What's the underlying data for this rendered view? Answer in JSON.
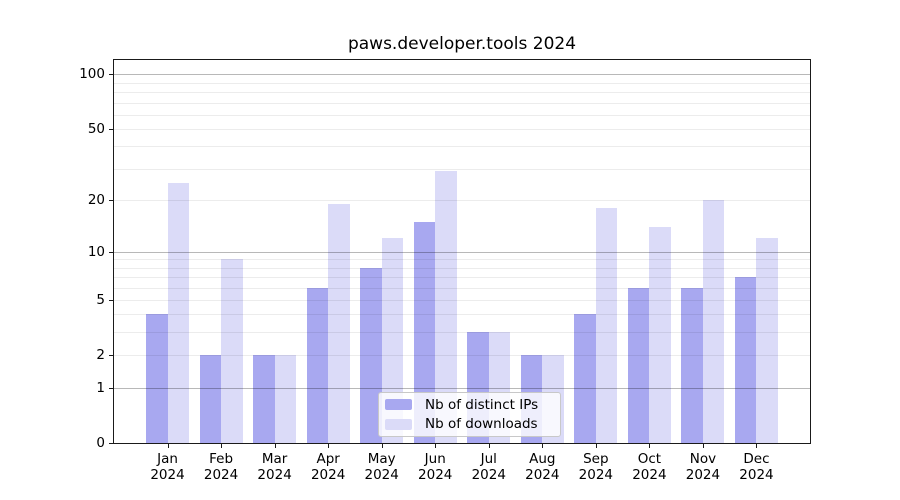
{
  "title": "paws.developer.tools 2024",
  "chart_data": {
    "type": "bar",
    "title": "paws.developer.tools 2024",
    "categories": [
      "Jan",
      "Feb",
      "Mar",
      "Apr",
      "May",
      "Jun",
      "Jul",
      "Aug",
      "Sep",
      "Oct",
      "Nov",
      "Dec"
    ],
    "category_year": "2024",
    "series": [
      {
        "name": "Nb of distinct IPs",
        "color": "#a8a8f0",
        "values": [
          4,
          2,
          2,
          6,
          8,
          15,
          3,
          2,
          4,
          6,
          6,
          7
        ]
      },
      {
        "name": "Nb of downloads",
        "color": "#dbdbf8",
        "values": [
          25,
          9,
          2,
          19,
          12,
          29,
          3,
          2,
          18,
          14,
          20,
          12
        ]
      }
    ],
    "xlabel": "",
    "ylabel": "",
    "yscale": "log1p",
    "ylim": [
      0,
      120
    ],
    "yticks": [
      0,
      1,
      2,
      5,
      10,
      20,
      50,
      100
    ],
    "grid": {
      "major": [
        1,
        10,
        100
      ],
      "minor": [
        2,
        3,
        4,
        5,
        6,
        7,
        8,
        9,
        20,
        30,
        40,
        50,
        60,
        70,
        80,
        90
      ]
    },
    "legend_position": "lower center",
    "background_color": "#ffffff"
  }
}
